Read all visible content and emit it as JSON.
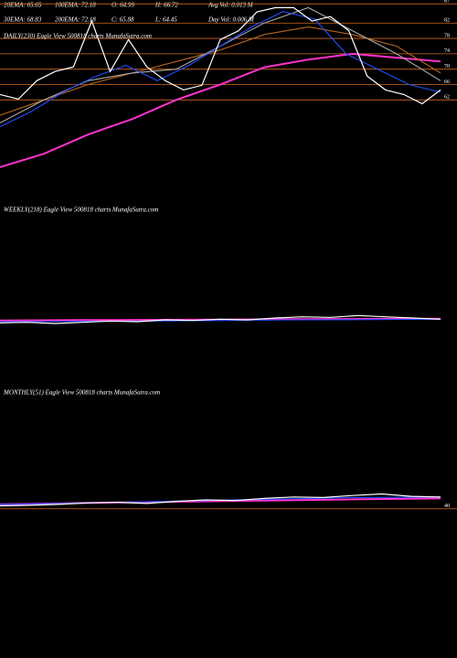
{
  "header": [
    [
      "20EMA: 65.65",
      "100EMA: 72.18",
      "O: 64.99",
      "H: 66.72",
      "Avg Vol: 0.013 M"
    ],
    [
      "30EMA: 68.83",
      "200EMA: 72.18",
      "C: 65.88",
      "L: 64.45",
      "Day Vol: 0.006  M"
    ]
  ],
  "chart_data": [
    {
      "type": "line",
      "title": "DAILY(230) Eagle  View  500818 charts MunafaSutra.com",
      "ylim": [
        44,
        88
      ],
      "yticks": [
        62,
        66,
        70,
        74,
        78,
        82,
        87
      ],
      "series": [
        {
          "color": "#ff33cc",
          "values": [
            44.5,
            48,
            53,
            57,
            62,
            66,
            70.5,
            72.5,
            74,
            73,
            72
          ]
        },
        {
          "color": "#b8651b",
          "values": [
            58,
            62,
            66,
            69,
            72,
            75,
            79,
            81,
            79,
            76,
            69
          ]
        },
        {
          "color": "#aaaaaa",
          "values": [
            56,
            62,
            67,
            69,
            70,
            76,
            82,
            86,
            80,
            74,
            67
          ]
        },
        {
          "color": "#1f4fff",
          "values": [
            55,
            59,
            64,
            68,
            71,
            67,
            71,
            76,
            81,
            85,
            83,
            74,
            70,
            66,
            64
          ]
        },
        {
          "color": "#ffffff",
          "values": [
            63.4,
            62.2,
            67,
            69.4,
            70.6,
            82.5,
            69.4,
            77.7,
            70.6,
            67,
            64.6,
            65.8,
            77.7,
            80,
            84.9,
            86,
            86,
            82.5,
            83.7,
            80,
            68.2,
            64.6,
            63.4,
            61,
            64.6
          ]
        }
      ]
    },
    {
      "type": "line",
      "title": "WEEKLY(218) Eagle  View  500818 charts MunafaSutra.com",
      "ylim": [
        40,
        400
      ],
      "yticks": [],
      "series": [
        {
          "color": "#ff33cc",
          "values": [
            68,
            69,
            70,
            71,
            72,
            73,
            74
          ]
        },
        {
          "color": "#1f4fff",
          "values": [
            64,
            65,
            66,
            68,
            70,
            71,
            72
          ]
        },
        {
          "color": "#ffffff",
          "values": [
            60,
            62,
            58,
            62,
            66,
            64,
            70,
            68,
            72,
            70,
            76,
            80,
            78,
            84,
            80,
            76,
            72
          ]
        }
      ]
    },
    {
      "type": "line",
      "title": "MONTHLY(51) Eagle  View  500818 charts MunafaSutra.com",
      "ylim": [
        30,
        400
      ],
      "yticks": [
        40
      ],
      "series": [
        {
          "color": "#ff33cc",
          "values": [
            55,
            60,
            64,
            68,
            72,
            75
          ]
        },
        {
          "color": "#1f4fff",
          "values": [
            55,
            60,
            66,
            72,
            78,
            80
          ]
        },
        {
          "color": "#ffffff",
          "values": [
            50,
            52,
            55,
            60,
            62,
            58,
            65,
            70,
            68,
            75,
            80,
            78,
            85,
            90,
            82,
            80
          ]
        }
      ]
    }
  ]
}
